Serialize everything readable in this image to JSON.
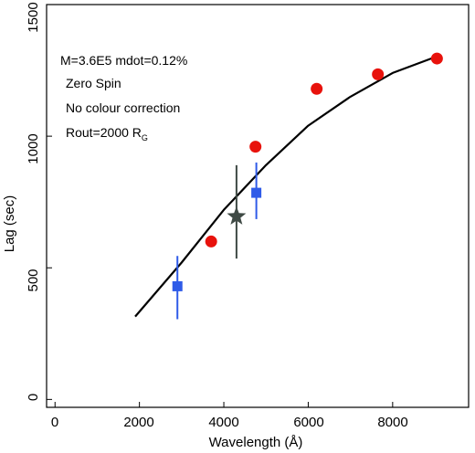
{
  "chart_data": {
    "type": "scatter",
    "xlabel": "Wavelength (Å)",
    "ylabel": "Lag (sec)",
    "xlim": [
      -200,
      9800
    ],
    "ylim": [
      -30,
      1500
    ],
    "xticks": [
      0,
      2000,
      4000,
      6000,
      8000
    ],
    "yticks": [
      0,
      500,
      1000,
      1500
    ],
    "annotations": [
      "M=3.6E5 mdot=0.12%",
      "Zero Spin",
      "No colour correction",
      "Rout=2000 R",
      "G"
    ],
    "series": [
      {
        "kind": "line",
        "color": "#000000",
        "x": [
          1900,
          3000,
          4000,
          5000,
          6000,
          7000,
          8000,
          9000
        ],
        "y": [
          315,
          520,
          720,
          890,
          1040,
          1150,
          1240,
          1300
        ]
      },
      {
        "kind": "circle-markers",
        "color": "#e8120c",
        "x": [
          3700,
          4750,
          6200,
          7650,
          9050
        ],
        "y": [
          600,
          960,
          1180,
          1235,
          1295
        ]
      },
      {
        "kind": "square-markers-with-errors",
        "color": "#2f5be8",
        "x": [
          2900,
          4770
        ],
        "y": [
          430,
          785
        ],
        "yerr_low": [
          125,
          100
        ],
        "yerr_high": [
          115,
          115
        ]
      },
      {
        "kind": "star-marker-with-error",
        "color": "#3f4a45",
        "x": [
          4300
        ],
        "y": [
          695
        ],
        "yerr_low": [
          160
        ],
        "yerr_high": [
          195
        ]
      }
    ]
  }
}
